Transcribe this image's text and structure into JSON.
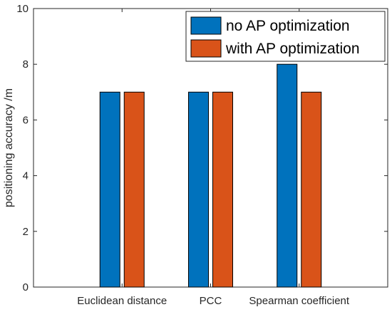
{
  "chart_data": {
    "type": "bar",
    "categories": [
      "Euclidean distance",
      "PCC",
      "Spearman coefficient"
    ],
    "series": [
      {
        "name": "no AP optimization",
        "values": [
          7,
          7,
          8
        ],
        "color": "#0072BD"
      },
      {
        "name": "with AP optimization",
        "values": [
          7,
          7,
          7
        ],
        "color": "#D95319"
      }
    ],
    "xlabel": "",
    "ylabel": "positioning accuracy /m",
    "ylim": [
      0,
      10
    ],
    "yticks": [
      0,
      2,
      4,
      6,
      8,
      10
    ],
    "grid": false,
    "legend_position": "top-right"
  }
}
